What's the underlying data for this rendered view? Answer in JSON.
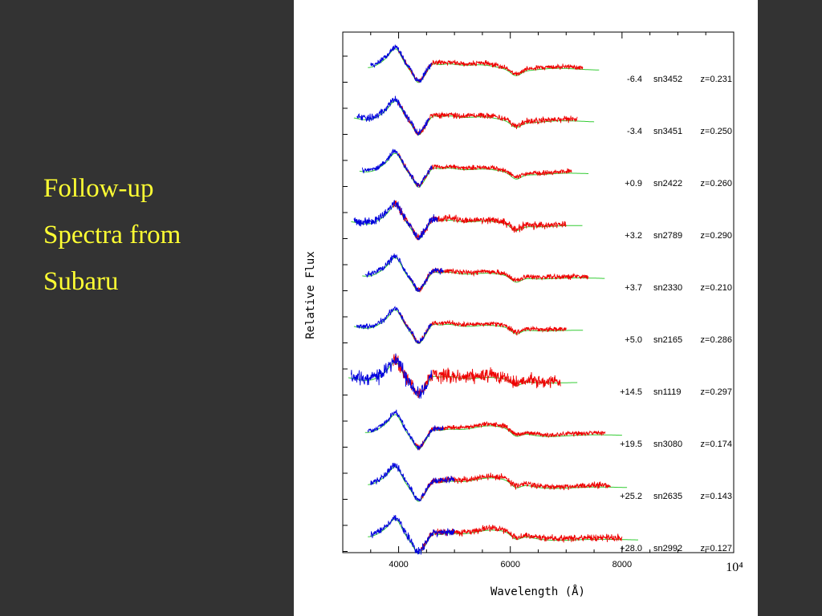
{
  "slide": {
    "title_lines": [
      "Follow-up",
      "Spectra from",
      "Subaru"
    ]
  },
  "colors": {
    "background": "#333333",
    "title": "#ffff33",
    "figure_background": "#ffffff",
    "observed_blue": "#0000dd",
    "observed_red": "#ee0000",
    "template_green": "#33cc33"
  },
  "chart_data": {
    "type": "line",
    "title": "",
    "xlabel": "Wavelength (Å)",
    "ylabel": "Relative Flux",
    "xlim": [
      3000,
      10000
    ],
    "x_ticks": [
      4000,
      6000,
      8000
    ],
    "x_tick_labels": [
      "4000",
      "6000",
      "8000"
    ],
    "x_multiplier_label": "10⁴",
    "grid": false,
    "series_legend": [
      "blue: blue-arm spectrum",
      "red: red-arm spectrum",
      "green: template"
    ],
    "spectra": [
      {
        "phase": "-6.4",
        "name": "sn3452",
        "z": "z=0.231",
        "blue": [
          3500,
          4600
        ],
        "red": [
          4000,
          7300
        ],
        "noise": 0.3
      },
      {
        "phase": "-3.4",
        "name": "sn3451",
        "z": "z=0.250",
        "blue": [
          3250,
          4550
        ],
        "red": [
          4000,
          7200
        ],
        "noise": 0.5
      },
      {
        "phase": "+0.9",
        "name": "sn2422",
        "z": "z=0.260",
        "blue": [
          3350,
          4600
        ],
        "red": [
          4000,
          7100
        ],
        "noise": 0.3
      },
      {
        "phase": "+3.2",
        "name": "sn2789",
        "z": "z=0.290",
        "blue": [
          3200,
          4700
        ],
        "red": [
          3900,
          7000
        ],
        "noise": 0.7
      },
      {
        "phase": "+3.7",
        "name": "sn2330",
        "z": "z=0.210",
        "blue": [
          3400,
          4800
        ],
        "red": [
          4200,
          7400
        ],
        "noise": 0.4
      },
      {
        "phase": "+5.0",
        "name": "sn2165",
        "z": "z=0.286",
        "blue": [
          3250,
          4600
        ],
        "red": [
          4000,
          7000
        ],
        "noise": 0.3
      },
      {
        "phase": "+14.5",
        "name": "sn1119",
        "z": "z=0.297",
        "blue": [
          3150,
          4600
        ],
        "red": [
          3900,
          6900
        ],
        "noise": 1.6
      },
      {
        "phase": "+19.5",
        "name": "sn3080",
        "z": "z=0.174",
        "blue": [
          3450,
          4800
        ],
        "red": [
          4300,
          7700
        ],
        "noise": 0.3
      },
      {
        "phase": "+25.2",
        "name": "sn2635",
        "z": "z=0.143",
        "blue": [
          3500,
          5000
        ],
        "red": [
          4400,
          7800
        ],
        "noise": 0.5
      },
      {
        "phase": "+28.0",
        "name": "sn2992",
        "z": "z=0.127",
        "blue": [
          3500,
          5000
        ],
        "red": [
          4400,
          8000
        ],
        "noise": 0.6
      }
    ]
  }
}
